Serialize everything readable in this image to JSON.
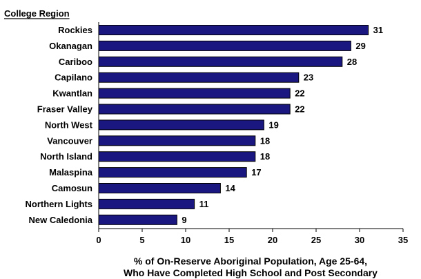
{
  "chart_data": {
    "type": "bar",
    "orientation": "horizontal",
    "ylabel": "College Region",
    "xlabel_lines": [
      "% of On-Reserve Aboriginal Population, Age 25-64,",
      "Who Have Completed High School and Post Secondary"
    ],
    "categories": [
      "Rockies",
      "Okanagan",
      "Cariboo",
      "Capilano",
      "Kwantlan",
      "Fraser Valley",
      "North West",
      "Vancouver",
      "North Island",
      "Malaspina",
      "Camosun",
      "Northern Lights",
      "New Caledonia"
    ],
    "values": [
      31,
      29,
      28,
      23,
      22,
      22,
      19,
      18,
      18,
      17,
      14,
      11,
      9
    ],
    "xlim": [
      0,
      35
    ],
    "xticks": [
      0,
      5,
      10,
      15,
      20,
      25,
      30,
      35
    ],
    "bar_color": "#1a1780",
    "grid": false,
    "legend": "none"
  }
}
